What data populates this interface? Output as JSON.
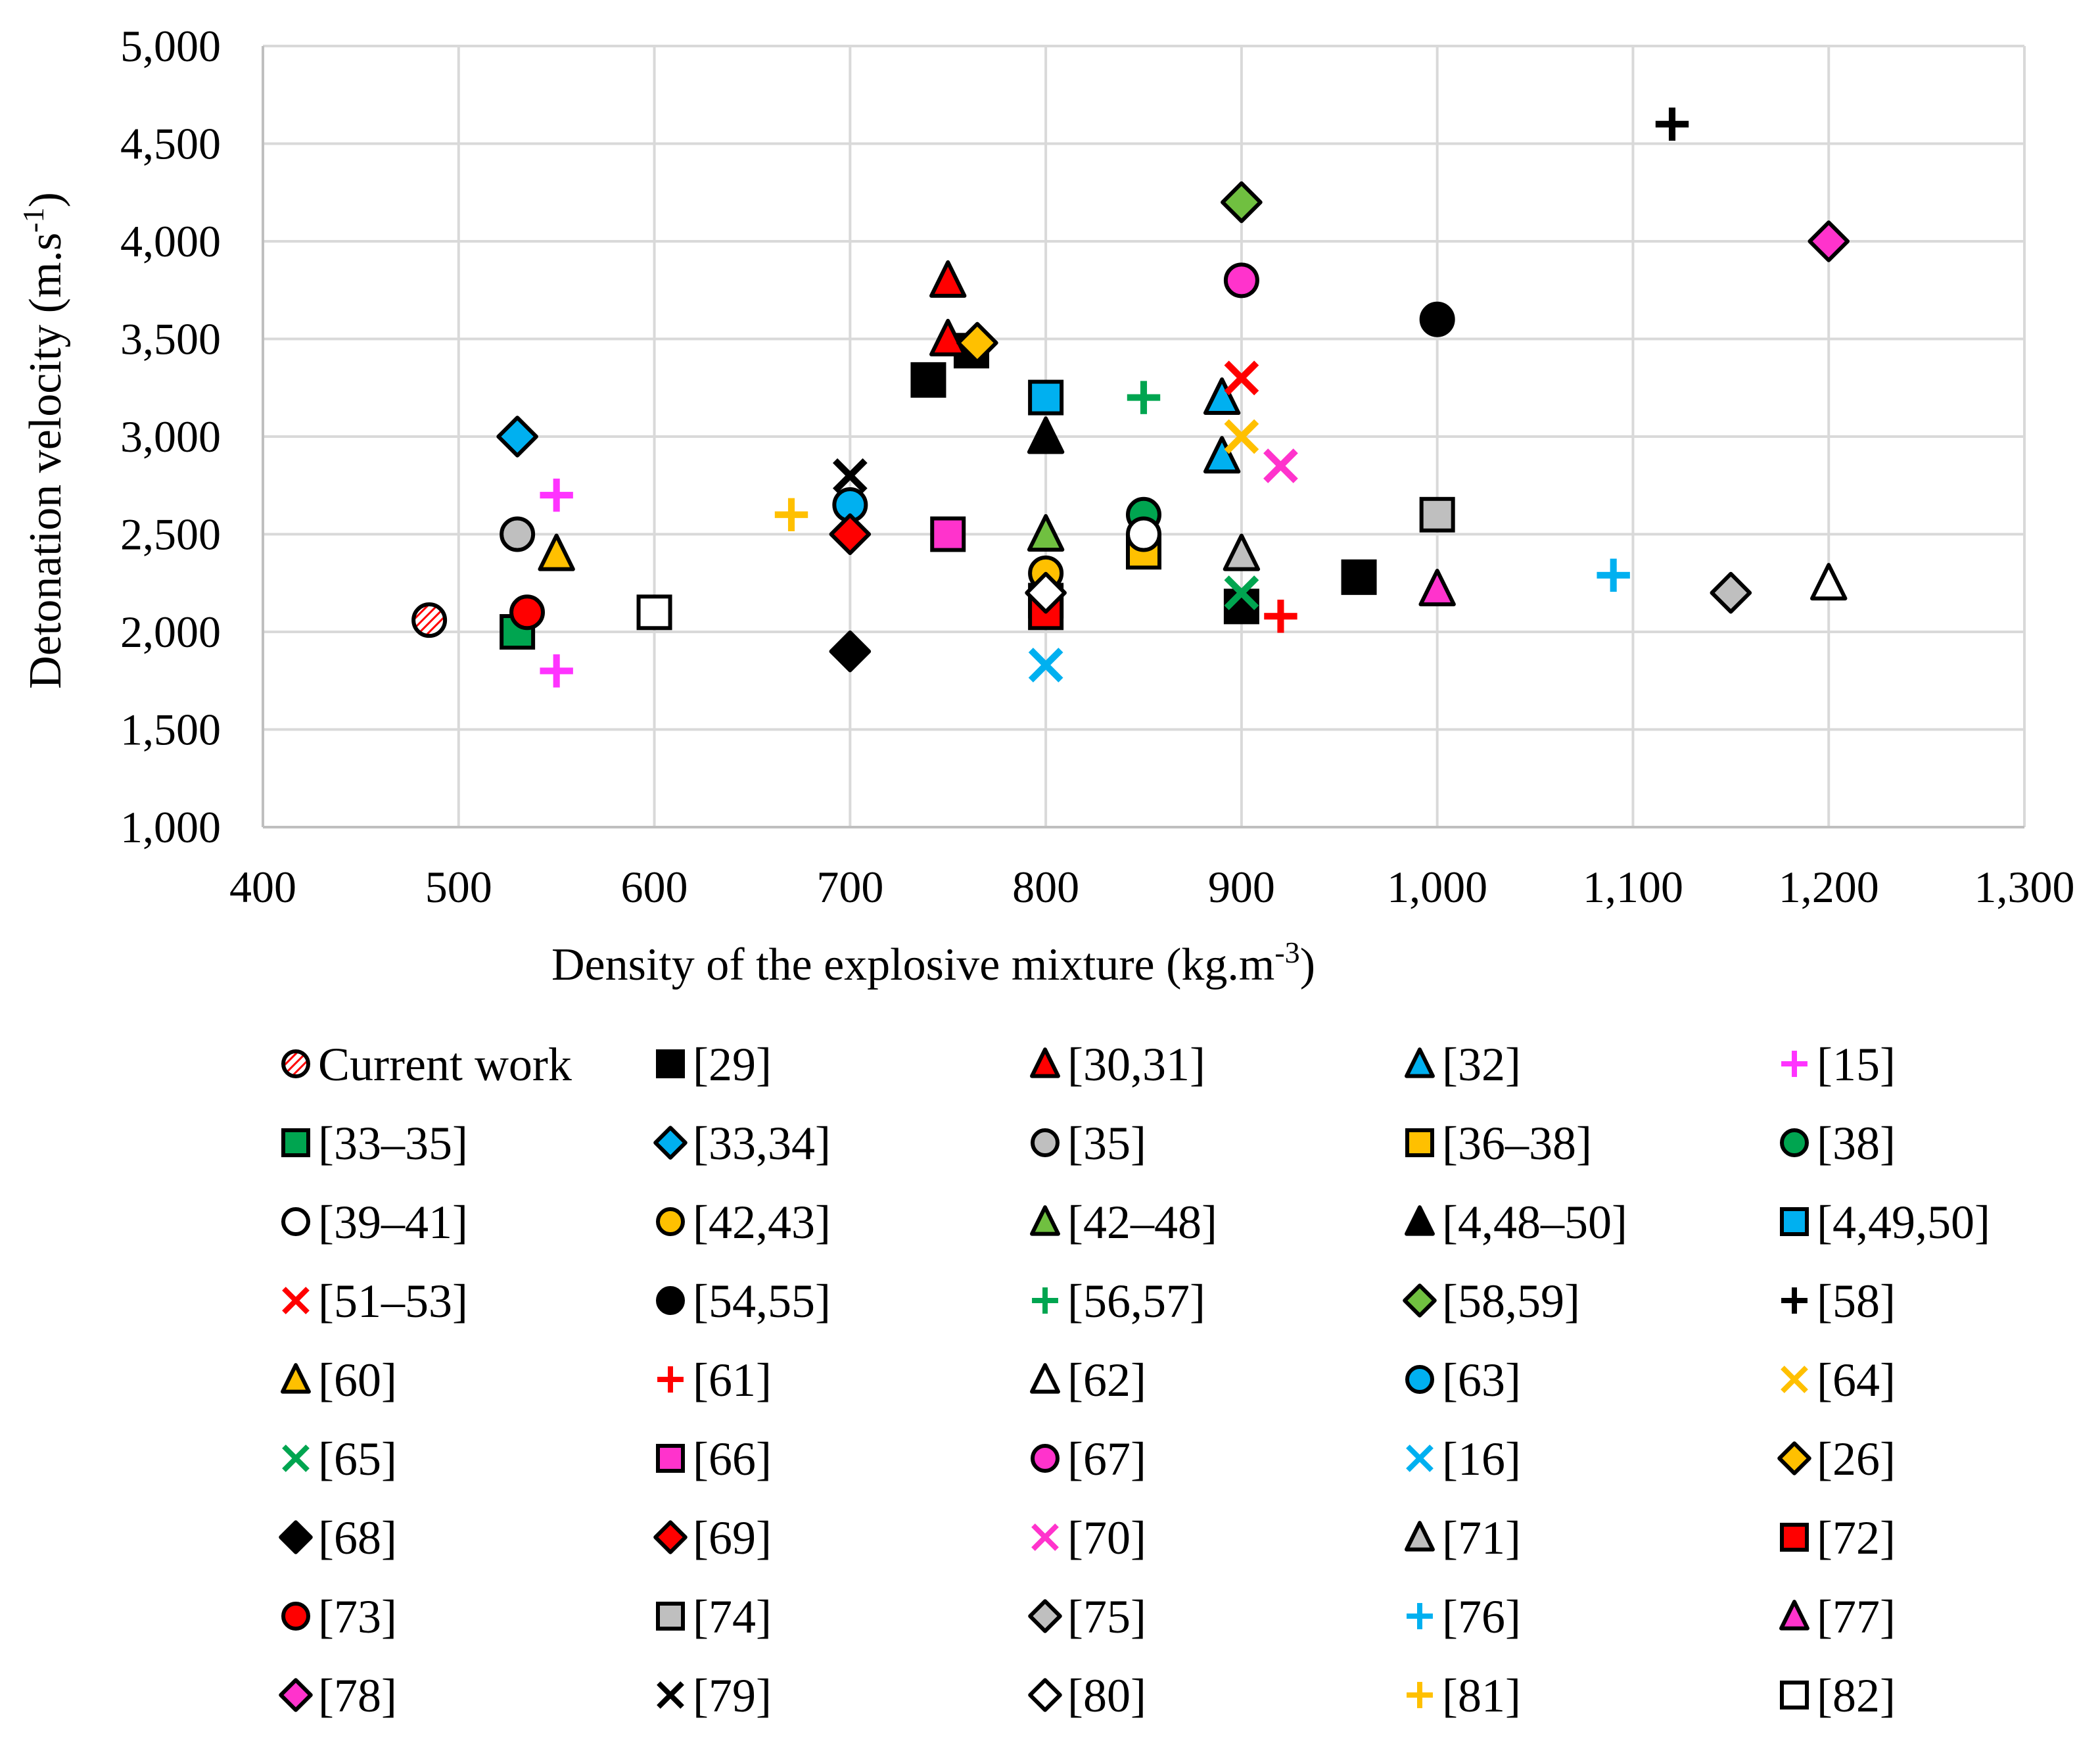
{
  "chart_data": {
    "type": "scatter",
    "title": "",
    "xlabel": "Density of the explosive mixture",
    "xlabel_unit": "(kg.m",
    "xlabel_sup": "-3",
    "xlabel_close": ")",
    "ylabel": "Detonation velocity",
    "ylabel_unit": "(m.s",
    "ylabel_sup": "-1",
    "ylabel_close": ")",
    "xlim": [
      400,
      1300
    ],
    "ylim": [
      1000,
      5000
    ],
    "xticks": [
      400,
      500,
      600,
      700,
      800,
      900,
      1000,
      1100,
      1200,
      1300
    ],
    "xtick_labels": [
      "400",
      "500",
      "600",
      "700",
      "800",
      "900",
      "1,000",
      "1,100",
      "1,200",
      "1,300"
    ],
    "yticks": [
      1000,
      1500,
      2000,
      2500,
      3000,
      3500,
      4000,
      4500,
      5000
    ],
    "ytick_labels": [
      "1,000",
      "1,500",
      "2,000",
      "2,500",
      "3,000",
      "3,500",
      "4,000",
      "4,500",
      "5,000"
    ],
    "grid": true,
    "legend_position": "bottom",
    "series": [
      {
        "name": "Current work",
        "marker": "circle",
        "fill": "hatch",
        "color": "#ff0000",
        "points": [
          [
            485,
            2060
          ]
        ]
      },
      {
        "name": "[29]",
        "marker": "square",
        "fill": "#000000",
        "points": [
          [
            740,
            3290
          ],
          [
            762,
            3440
          ],
          [
            800,
            2160
          ],
          [
            900,
            2130
          ],
          [
            960,
            2280
          ]
        ]
      },
      {
        "name": "[30,31]",
        "marker": "triangle",
        "fill": "#ff0000",
        "points": [
          [
            750,
            3800
          ],
          [
            750,
            3500
          ]
        ]
      },
      {
        "name": "[32]",
        "marker": "triangle",
        "fill": "#00b0f0",
        "points": [
          [
            890,
            3200
          ],
          [
            890,
            2900
          ]
        ]
      },
      {
        "name": "[15]",
        "marker": "plus",
        "fill": "#ff33ff",
        "points": [
          [
            550,
            2700
          ],
          [
            550,
            1800
          ]
        ]
      },
      {
        "name": "[33–35]",
        "marker": "square",
        "fill": "#00a550",
        "points": [
          [
            530,
            2000
          ]
        ]
      },
      {
        "name": "[33,34]",
        "marker": "diamond",
        "fill": "#00b0f0",
        "points": [
          [
            530,
            3000
          ]
        ]
      },
      {
        "name": "[35]",
        "marker": "circle",
        "fill": "#bfbfbf",
        "points": [
          [
            530,
            2500
          ]
        ]
      },
      {
        "name": "[36–38]",
        "marker": "square",
        "fill": "#ffc000",
        "points": [
          [
            850,
            2410
          ]
        ]
      },
      {
        "name": "[38]",
        "marker": "circle",
        "fill": "#00a550",
        "points": [
          [
            850,
            2600
          ]
        ]
      },
      {
        "name": "[39–41]",
        "marker": "circle",
        "fill": "#ffffff",
        "points": [
          [
            850,
            2500
          ]
        ]
      },
      {
        "name": "[42,43]",
        "marker": "circle",
        "fill": "#ffc000",
        "points": [
          [
            800,
            2300
          ]
        ]
      },
      {
        "name": "[42–48]",
        "marker": "triangle",
        "fill": "#70c040",
        "points": [
          [
            800,
            2500
          ]
        ]
      },
      {
        "name": "[4,48–50]",
        "marker": "triangle",
        "fill": "#000000",
        "points": [
          [
            800,
            3000
          ]
        ]
      },
      {
        "name": "[4,49,50]",
        "marker": "square",
        "fill": "#00b0f0",
        "points": [
          [
            800,
            3200
          ]
        ]
      },
      {
        "name": "[51–53]",
        "marker": "x",
        "fill": "#ff0000",
        "points": [
          [
            900,
            3300
          ]
        ]
      },
      {
        "name": "[54,55]",
        "marker": "circle",
        "fill": "#000000",
        "points": [
          [
            1000,
            3600
          ]
        ]
      },
      {
        "name": "[56,57]",
        "marker": "plus",
        "fill": "#00a550",
        "points": [
          [
            850,
            3200
          ]
        ]
      },
      {
        "name": "[58,59]",
        "marker": "diamond",
        "fill": "#70c040",
        "points": [
          [
            900,
            4200
          ]
        ]
      },
      {
        "name": "[58]",
        "marker": "plus",
        "fill": "#000000",
        "points": [
          [
            1120,
            4600
          ]
        ]
      },
      {
        "name": "[60]",
        "marker": "triangle",
        "fill": "#ffc000",
        "points": [
          [
            550,
            2400
          ]
        ]
      },
      {
        "name": "[61]",
        "marker": "plus",
        "fill": "#ff0000",
        "points": [
          [
            920,
            2080
          ]
        ]
      },
      {
        "name": "[62]",
        "marker": "triangle",
        "fill": "#ffffff",
        "points": [
          [
            1200,
            2250
          ]
        ]
      },
      {
        "name": "[63]",
        "marker": "circle",
        "fill": "#00b0f0",
        "points": [
          [
            700,
            2650
          ]
        ]
      },
      {
        "name": "[64]",
        "marker": "x",
        "fill": "#ffc000",
        "points": [
          [
            900,
            3000
          ]
        ]
      },
      {
        "name": "[65]",
        "marker": "x",
        "fill": "#00a550",
        "points": [
          [
            900,
            2200
          ]
        ]
      },
      {
        "name": "[66]",
        "marker": "square",
        "fill": "#ff33cc",
        "points": [
          [
            750,
            2500
          ]
        ]
      },
      {
        "name": "[67]",
        "marker": "circle",
        "fill": "#ff33cc",
        "points": [
          [
            900,
            3800
          ]
        ]
      },
      {
        "name": "[16]",
        "marker": "x",
        "fill": "#00b0f0",
        "points": [
          [
            800,
            1830
          ]
        ]
      },
      {
        "name": "[26]",
        "marker": "diamond",
        "fill": "#ffc000",
        "points": [
          [
            765,
            3480
          ]
        ]
      },
      {
        "name": "[68]",
        "marker": "diamond",
        "fill": "#000000",
        "points": [
          [
            700,
            1900
          ]
        ]
      },
      {
        "name": "[69]",
        "marker": "diamond",
        "fill": "#ff0000",
        "points": [
          [
            700,
            2500
          ]
        ]
      },
      {
        "name": "[70]",
        "marker": "x",
        "fill": "#ff33cc",
        "points": [
          [
            920,
            2850
          ]
        ]
      },
      {
        "name": "[71]",
        "marker": "triangle",
        "fill": "#bfbfbf",
        "points": [
          [
            900,
            2400
          ]
        ]
      },
      {
        "name": "[72]",
        "marker": "square",
        "fill": "#ff0000",
        "points": [
          [
            800,
            2100
          ]
        ]
      },
      {
        "name": "[73]",
        "marker": "circle",
        "fill": "#ff0000",
        "points": [
          [
            535,
            2100
          ]
        ]
      },
      {
        "name": "[74]",
        "marker": "square",
        "fill": "#bfbfbf",
        "points": [
          [
            1000,
            2600
          ]
        ]
      },
      {
        "name": "[75]",
        "marker": "diamond",
        "fill": "#bfbfbf",
        "points": [
          [
            1150,
            2200
          ]
        ]
      },
      {
        "name": "[76]",
        "marker": "plus",
        "fill": "#00b0f0",
        "points": [
          [
            1090,
            2290
          ]
        ]
      },
      {
        "name": "[77]",
        "marker": "triangle",
        "fill": "#ff33cc",
        "points": [
          [
            1000,
            2220
          ]
        ]
      },
      {
        "name": "[78]",
        "marker": "diamond",
        "fill": "#ff33cc",
        "points": [
          [
            1200,
            4000
          ]
        ]
      },
      {
        "name": "[79]",
        "marker": "x",
        "fill": "#000000",
        "points": [
          [
            700,
            2800
          ]
        ]
      },
      {
        "name": "[80]",
        "marker": "diamond",
        "fill": "#ffffff",
        "points": [
          [
            800,
            2200
          ]
        ]
      },
      {
        "name": "[81]",
        "marker": "plus",
        "fill": "#ffc000",
        "points": [
          [
            670,
            2600
          ]
        ]
      },
      {
        "name": "[82]",
        "marker": "square",
        "fill": "#ffffff",
        "points": [
          [
            600,
            2100
          ]
        ]
      }
    ]
  }
}
